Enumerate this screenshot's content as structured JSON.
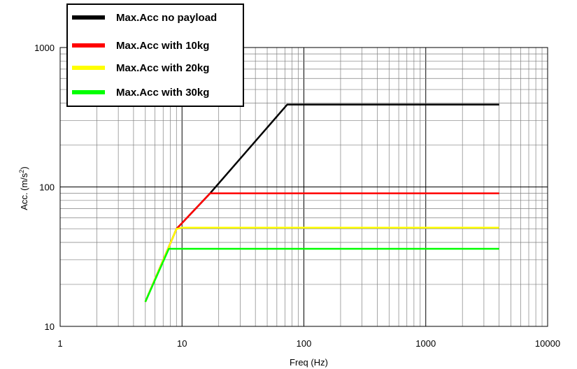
{
  "chart_data": {
    "type": "line",
    "xlabel": "Freq (Hz)",
    "ylabel_main": "Acc. (m/s",
    "ylabel_sup": "2",
    "ylabel_close": ")",
    "x_scale": "log",
    "y_scale": "log",
    "xlim": [
      1,
      10000
    ],
    "ylim": [
      10,
      1000
    ],
    "x_ticks": [
      1,
      10,
      100,
      1000,
      10000
    ],
    "x_tick_labels": [
      "1",
      "10",
      "100",
      "1000",
      "10000"
    ],
    "y_ticks": [
      10,
      100,
      1000
    ],
    "y_tick_labels": [
      "10",
      "100",
      "1000"
    ],
    "grid": true,
    "legend_position": "top-left",
    "series": [
      {
        "name": "Max.Acc no payload",
        "color": "#000000",
        "points": [
          [
            5,
            15
          ],
          [
            9,
            50
          ],
          [
            17,
            90
          ],
          [
            73,
            390
          ],
          [
            4000,
            390
          ]
        ]
      },
      {
        "name": "Max.Acc with 10kg",
        "color": "#ff0000",
        "points": [
          [
            5,
            15
          ],
          [
            9,
            50
          ],
          [
            17,
            90
          ],
          [
            4000,
            90
          ]
        ]
      },
      {
        "name": "Max.Acc with 20kg",
        "color": "#ffff00",
        "points": [
          [
            5,
            15
          ],
          [
            9,
            50
          ],
          [
            10,
            51
          ],
          [
            4000,
            51
          ]
        ]
      },
      {
        "name": "Max.Acc with 30kg",
        "color": "#00ff00",
        "points": [
          [
            5,
            15
          ],
          [
            7.8,
            36
          ],
          [
            4000,
            36
          ]
        ]
      }
    ]
  }
}
